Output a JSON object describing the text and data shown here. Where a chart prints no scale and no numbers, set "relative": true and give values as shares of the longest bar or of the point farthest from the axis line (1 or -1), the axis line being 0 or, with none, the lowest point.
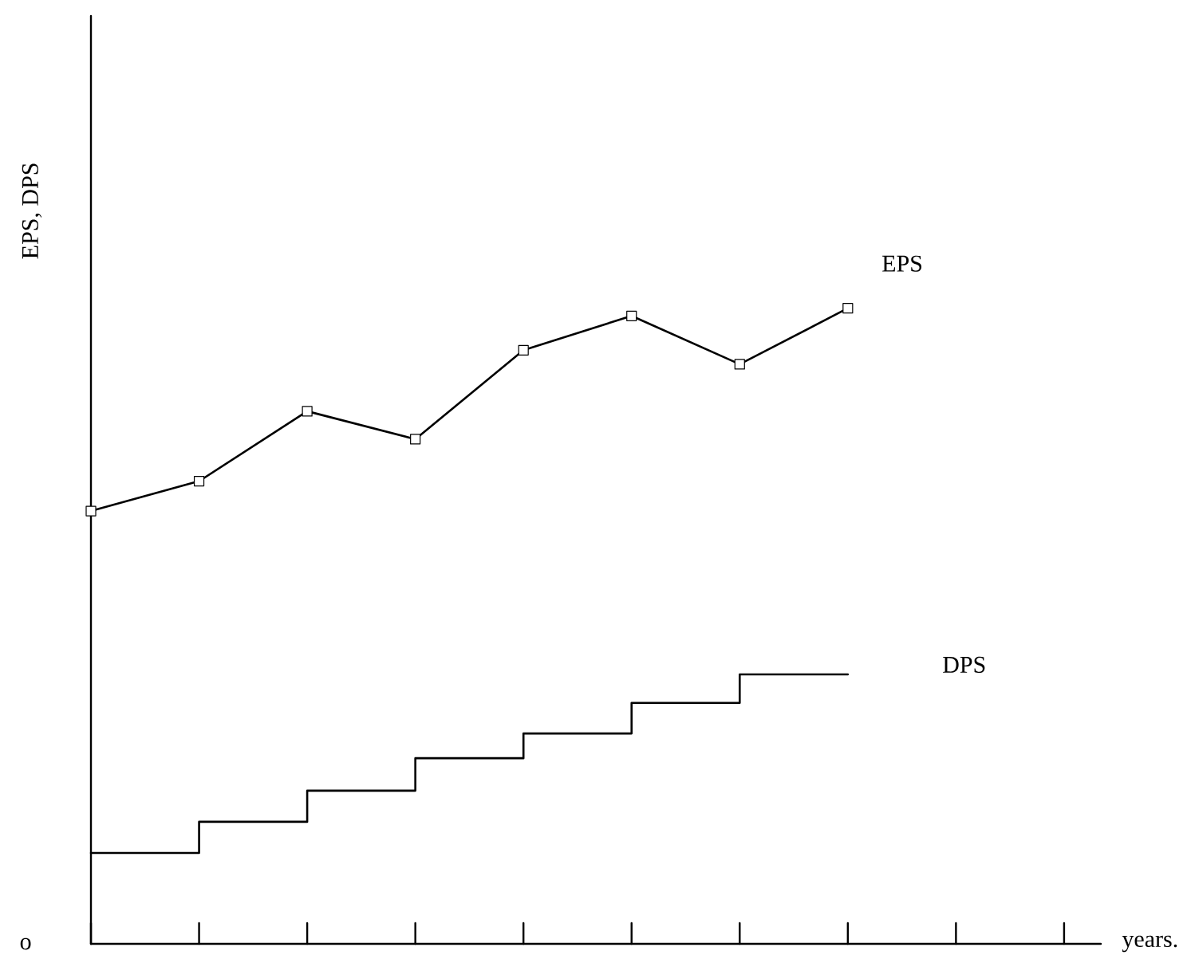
{
  "chart_data": {
    "type": "line",
    "relative": true,
    "xlabel": "years.",
    "ylabel": "EPS, DPS",
    "annotations": [
      "o"
    ],
    "categories": [
      null,
      null,
      null,
      null,
      null,
      null,
      null,
      null,
      null,
      null
    ],
    "series": [
      {
        "name": "EPS",
        "type": "line",
        "marker": "square",
        "color": "#000000",
        "values": [
          0.681,
          0.728,
          0.838,
          0.794,
          0.934,
          0.988,
          0.912,
          1.0,
          null,
          null
        ]
      },
      {
        "name": "DPS",
        "type": "step",
        "marker": "none",
        "color": "#000000",
        "values": [
          0.143,
          0.192,
          0.241,
          0.292,
          0.331,
          0.379,
          0.424,
          0.424,
          null,
          null
        ]
      }
    ],
    "grid": false,
    "legend": false,
    "line_style": "solid"
  }
}
